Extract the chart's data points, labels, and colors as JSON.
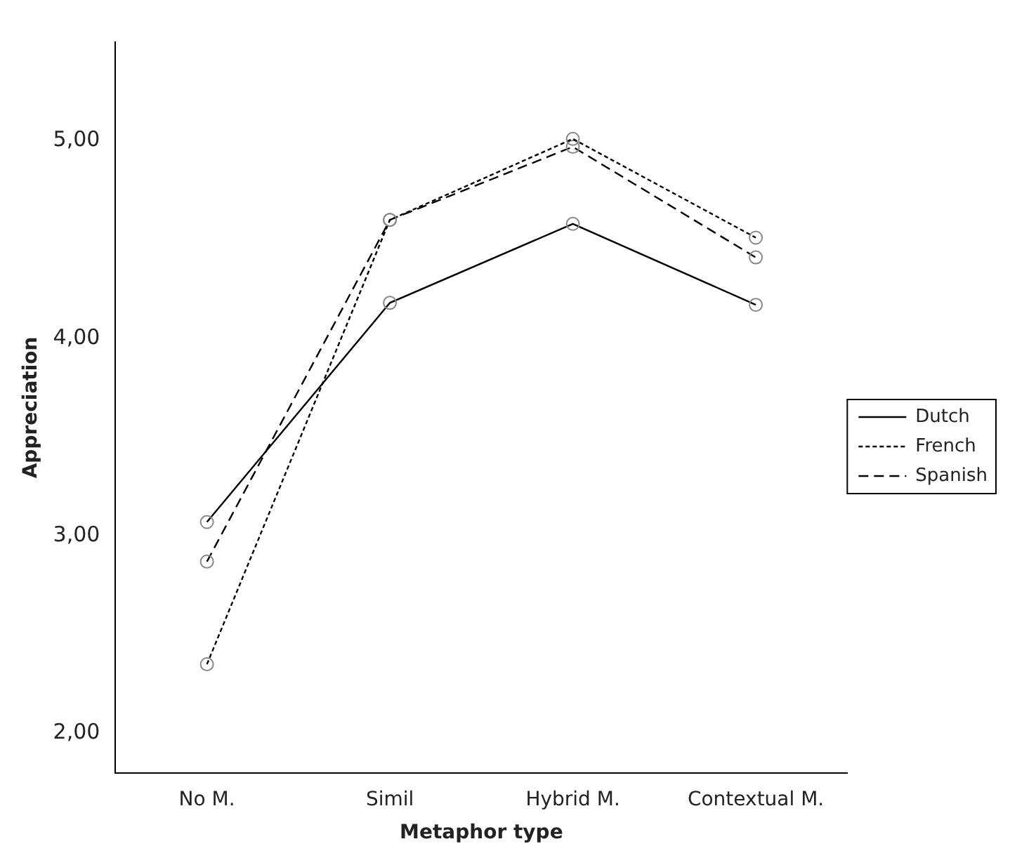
{
  "chart_data": {
    "type": "line",
    "xlabel": "Metaphor type",
    "ylabel": "Appreciation",
    "categories": [
      "No M.",
      "Simil",
      "Hybrid M.",
      "Contextual M."
    ],
    "series": [
      {
        "name": "Dutch",
        "color": "#000000",
        "line_style": "solid",
        "values": [
          3.07,
          4.18,
          4.58,
          4.17
        ]
      },
      {
        "name": "French",
        "color": "#000000",
        "line_style": "dotted",
        "values": [
          2.35,
          4.6,
          5.01,
          4.51
        ]
      },
      {
        "name": "Spanish",
        "color": "#000000",
        "line_style": "dashed",
        "values": [
          2.87,
          4.6,
          4.97,
          4.41
        ]
      }
    ],
    "ylim": [
      1.8,
      5.5
    ],
    "yticks": [
      {
        "value": 2,
        "label": "2,00"
      },
      {
        "value": 3,
        "label": "3,00"
      },
      {
        "value": 4,
        "label": "4,00"
      },
      {
        "value": 5,
        "label": "5,00"
      }
    ],
    "grid": false,
    "legend": "right",
    "marker": "circle"
  }
}
